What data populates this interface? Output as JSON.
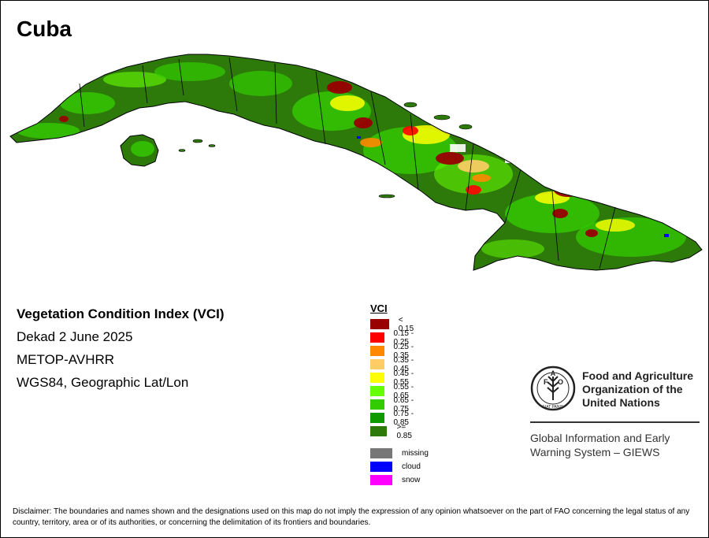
{
  "map": {
    "title": "Cuba",
    "colors": {
      "ocean": "#ffffff",
      "base_green": "#2d7a0a",
      "border": "#000000"
    }
  },
  "info": {
    "index_name": "Vegetation Condition Index (VCI)",
    "period": "Dekad 2 June 2025",
    "sensor": "METOP-AVHRR",
    "projection": "WGS84, Geographic Lat/Lon"
  },
  "legend": {
    "title": "VCI",
    "classes": [
      {
        "label": "< 0.15",
        "color": "#990000"
      },
      {
        "label": "0.15 - 0.25",
        "color": "#ff0000"
      },
      {
        "label": "0.25 - 0.35",
        "color": "#ff8800"
      },
      {
        "label": "0.35 - 0.45",
        "color": "#ffcc66"
      },
      {
        "label": "0.45 - 0.55",
        "color": "#ffff00"
      },
      {
        "label": "0.55 - 0.65",
        "color": "#66ff00"
      },
      {
        "label": "0.65 - 0.75",
        "color": "#33cc00"
      },
      {
        "label": "0.75 - 0.85",
        "color": "#119900"
      },
      {
        "label": ">= 0.85",
        "color": "#2d7a0a"
      }
    ],
    "special": [
      {
        "label": "missing",
        "color": "#777777"
      },
      {
        "label": "cloud",
        "color": "#0000ff"
      },
      {
        "label": "snow",
        "color": "#ff00ff"
      }
    ]
  },
  "fao": {
    "logo_letters": "FAO",
    "motto": "FIAT PANIS",
    "name_line1": "Food and Agriculture",
    "name_line2": "Organization of the",
    "name_line3": "United Nations",
    "giews_line1": "Global Information and Early",
    "giews_line2": "Warning System – GIEWS"
  },
  "disclaimer": "Disclaimer: The boundaries and names shown and the designations used on this map do not imply the expression of any opinion whatsoever on the part of FAO concerning the legal status of any country, territory, area or of its authorities, or concerning the delimitation of its frontiers and boundaries."
}
